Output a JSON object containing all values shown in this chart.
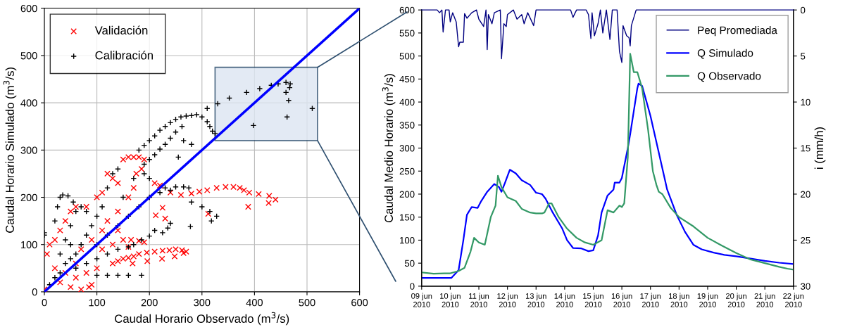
{
  "chart_data": [
    {
      "type": "scatter",
      "xlabel": "Caudal Horario Observado (m$^{3}$/s)",
      "ylabel": "Caudal Horario Simulado (m$^{3}$/s)",
      "xlim": [
        0,
        600
      ],
      "ylim": [
        0,
        600
      ],
      "xticks": [
        0,
        100,
        200,
        300,
        400,
        500,
        600
      ],
      "yticks": [
        0,
        100,
        200,
        300,
        400,
        500,
        600
      ],
      "grid": true,
      "legend": "top left",
      "series": [
        {
          "name": "Validación",
          "color": "#ff0000",
          "marker": "cross",
          "x": [
            0,
            10,
            20,
            30,
            40,
            50,
            60,
            80,
            20,
            30,
            50,
            70,
            85,
            90,
            5,
            150,
            160,
            170,
            180,
            190,
            185,
            175,
            120,
            130,
            140,
            100,
            110,
            210,
            220,
            240,
            260,
            280,
            295,
            310,
            328,
            345,
            360,
            372,
            380,
            390,
            408,
            428,
            440,
            427,
            388,
            312,
            212,
            230,
            225,
            130,
            140,
            150,
            160,
            170,
            180,
            195,
            210,
            225,
            238,
            250,
            262,
            270,
            265,
            248,
            224,
            196,
            168,
            150,
            165,
            180,
            190,
            160,
            40,
            60,
            70,
            90,
            110,
            120,
            140,
            160,
            170,
            60,
            80,
            100,
            110,
            130,
            140
          ],
          "values": [
            5,
            100,
            110,
            130,
            150,
            170,
            180,
            180,
            50,
            20,
            10,
            5,
            10,
            15,
            80,
            280,
            285,
            285,
            285,
            280,
            260,
            250,
            250,
            240,
            230,
            200,
            210,
            230,
            225,
            210,
            205,
            208,
            212,
            215,
            220,
            222,
            222,
            220,
            215,
            210,
            207,
            203,
            195,
            188,
            180,
            165,
            162,
            155,
            178,
            60,
            65,
            70,
            72,
            75,
            80,
            83,
            85,
            87,
            88,
            90,
            88,
            85,
            82,
            75,
            70,
            65,
            60,
            110,
            110,
            108,
            105,
            95,
            40,
            60,
            90,
            110,
            130,
            150,
            170,
            200,
            220,
            30,
            40,
            50,
            90,
            100,
            130
          ]
        },
        {
          "name": "Calibración",
          "color": "#000000",
          "marker": "plus",
          "x": [
            180,
            190,
            200,
            210,
            220,
            230,
            240,
            250,
            260,
            270,
            280,
            290,
            300,
            310,
            315,
            320,
            325,
            330,
            352,
            385,
            410,
            432,
            445,
            460,
            468,
            467,
            460,
            465,
            462,
            398,
            510,
            310,
            190,
            200,
            210,
            220,
            230,
            240,
            250,
            262,
            265,
            280,
            255,
            230,
            250,
            265,
            275,
            280,
            300,
            315,
            318,
            328,
            240,
            235,
            210,
            225,
            200,
            185,
            278,
            100,
            120,
            140,
            160,
            185,
            20,
            25,
            30,
            35,
            45,
            55,
            60,
            50,
            40,
            0,
            0,
            10,
            20,
            30,
            40,
            50,
            60,
            70,
            80,
            90,
            100,
            110,
            120,
            130,
            140,
            100,
            120,
            140,
            160,
            180,
            200,
            220,
            240,
            60,
            80,
            100,
            120,
            140,
            160,
            170,
            150,
            170,
            190,
            200,
            70,
            80,
            50,
            30
          ],
          "values": [
            300,
            310,
            320,
            330,
            342,
            350,
            358,
            365,
            370,
            372,
            373,
            375,
            370,
            360,
            350,
            340,
            335,
            398,
            410,
            422,
            430,
            437,
            440,
            443,
            440,
            432,
            422,
            405,
            370,
            352,
            388,
            388,
            270,
            280,
            290,
            302,
            312,
            325,
            338,
            350,
            320,
            312,
            285,
            220,
            222,
            222,
            220,
            190,
            180,
            170,
            150,
            160,
            145,
            135,
            130,
            125,
            118,
            110,
            138,
            35,
            35,
            35,
            35,
            35,
            150,
            180,
            200,
            205,
            203,
            190,
            170,
            140,
            110,
            120,
            125,
            15,
            30,
            40,
            60,
            70,
            80,
            100,
            120,
            140,
            160,
            180,
            220,
            250,
            260,
            100,
            120,
            140,
            160,
            180,
            200,
            210,
            215,
            50,
            60,
            70,
            80,
            90,
            95,
            100,
            200,
            240,
            250,
            240,
            180,
            170,
            100,
            80
          ]
        },
        {
          "type": "line",
          "color": "#0000ff",
          "x": [
            0,
            600
          ],
          "values": [
            0,
            600
          ]
        }
      ]
    },
    {
      "type": "line",
      "ylabel": "Caudal Medio Horario (m$^{3}$/s)",
      "y2label": "i (mm/h)",
      "xlim": [
        "2010-06-09",
        "2010-06-22"
      ],
      "xticks": [
        {
          "value": "2010-06-09",
          "label": "09 jun\n2010"
        },
        {
          "value": "2010-06-10",
          "label": "10 jun\n2010"
        },
        {
          "value": "2010-06-11",
          "label": "11 jun\n2010"
        },
        {
          "value": "2010-06-12",
          "label": "12 jun\n2010"
        },
        {
          "value": "2010-06-13",
          "label": "13 jun\n2010"
        },
        {
          "value": "2010-06-14",
          "label": "14 jun\n2010"
        },
        {
          "value": "2010-06-15",
          "label": "15 jun\n2010"
        },
        {
          "value": "2010-06-16",
          "label": "16 jun\n2010"
        },
        {
          "value": "2010-06-17",
          "label": "17 jun\n2010"
        },
        {
          "value": "2010-06-18",
          "label": "18 jun\n2010"
        },
        {
          "value": "2010-06-19",
          "label": "19 jun\n2010"
        },
        {
          "value": "2010-06-20",
          "label": "20 jun\n2010"
        },
        {
          "value": "2010-06-21",
          "label": "21 jun\n2010"
        },
        {
          "value": "2010-06-22",
          "label": "22 jun\n2010"
        }
      ],
      "ylim": [
        0,
        600
      ],
      "yticks": [
        0,
        50,
        100,
        150,
        200,
        250,
        300,
        350,
        400,
        450,
        500,
        550,
        600
      ],
      "y2lim": [
        30,
        0
      ],
      "y2ticks": [
        0,
        5,
        10,
        15,
        20,
        25,
        30
      ],
      "grid": false,
      "legend": "top right",
      "series": [
        {
          "name": "Peq Promediada",
          "color": "#000080",
          "axis": "y2",
          "x": [
            "2010-06-09T00:00",
            "2010-06-09T13:00",
            "2010-06-09T15:00",
            "2010-06-09T17:00",
            "2010-06-09T18:00",
            "2010-06-09T20:00",
            "2010-06-09T23:00",
            "2010-06-10T00:00",
            "2010-06-10T02:00",
            "2010-06-10T05:00",
            "2010-06-10T07:00",
            "2010-06-10T08:00",
            "2010-06-10T11:00",
            "2010-06-10T12:00",
            "2010-06-10T14:00",
            "2010-06-10T18:00",
            "2010-06-10T22:00",
            "2010-06-11T00:00",
            "2010-06-11T04:00",
            "2010-06-11T06:00",
            "2010-06-11T07:00",
            "2010-06-11T08:00",
            "2010-06-11T11:00",
            "2010-06-11T13:00",
            "2010-06-11T18:00",
            "2010-06-11T19:00",
            "2010-06-11T21:00",
            "2010-06-11T23:00",
            "2010-06-12T00:00",
            "2010-06-12T05:00",
            "2010-06-12T08:00",
            "2010-06-12T12:00",
            "2010-06-12T14:00",
            "2010-06-12T17:00",
            "2010-06-12T22:00",
            "2010-06-13T00:00",
            "2010-06-14T05:00",
            "2010-06-14T07:00",
            "2010-06-14T10:00",
            "2010-06-14T18:00",
            "2010-06-14T20:00",
            "2010-06-14T22:00",
            "2010-06-14T23:00",
            "2010-06-15T01:00",
            "2010-06-15T04:00",
            "2010-06-15T06:00",
            "2010-06-15T08:00",
            "2010-06-15T11:00",
            "2010-06-15T14:00",
            "2010-06-15T16:00",
            "2010-06-15T20:00",
            "2010-06-15T22:00",
            "2010-06-16T00:00",
            "2010-06-16T01:00",
            "2010-06-16T04:00",
            "2010-06-16T06:00",
            "2010-06-16T07:00",
            "2010-06-16T08:00",
            "2010-06-16T12:00",
            "2010-06-22T00:00"
          ],
          "values": [
            0,
            0,
            0.3,
            0,
            2.4,
            0,
            0,
            1.3,
            0.3,
            1.3,
            4.0,
            3.5,
            3.5,
            0.4,
            0.9,
            0.3,
            0,
            1.0,
            1.8,
            0,
            4.3,
            0.5,
            1.5,
            0.3,
            0,
            5.3,
            1.5,
            1.8,
            0.5,
            0,
            1.0,
            0.5,
            1.5,
            0.3,
            1.7,
            0,
            0,
            0.8,
            0,
            0,
            0.5,
            3.1,
            0.3,
            2.8,
            1.5,
            0,
            2.5,
            0,
            3.2,
            0,
            0,
            4.5,
            5.7,
            1.7,
            2.8,
            3.0,
            3.9,
            1.7,
            0,
            0
          ]
        },
        {
          "name": "Q Simulado",
          "color": "#0000ff",
          "x": [
            "2010-06-09T00:00",
            "2010-06-10T01:00",
            "2010-06-10T07:00",
            "2010-06-10T11:00",
            "2010-06-10T14:00",
            "2010-06-10T18:00",
            "2010-06-10T23:00",
            "2010-06-11T02:00",
            "2010-06-11T07:00",
            "2010-06-11T13:00",
            "2010-06-11T17:00",
            "2010-06-11T19:00",
            "2010-06-11T22:00",
            "2010-06-12T02:00",
            "2010-06-12T07:00",
            "2010-06-12T12:00",
            "2010-06-12T19:00",
            "2010-06-13T00:00",
            "2010-06-13T05:00",
            "2010-06-13T08:00",
            "2010-06-13T14:00",
            "2010-06-13T22:00",
            "2010-06-14T02:00",
            "2010-06-14T07:00",
            "2010-06-14T14:00",
            "2010-06-14T20:00",
            "2010-06-15T00:00",
            "2010-06-15T04:00",
            "2010-06-15T07:00",
            "2010-06-15T12:00",
            "2010-06-15T17:00",
            "2010-06-15T18:00",
            "2010-06-15T22:00",
            "2010-06-16T00:00",
            "2010-06-16T05:00",
            "2010-06-16T07:00",
            "2010-06-16T10:00",
            "2010-06-16T13:00",
            "2010-06-16T14:00",
            "2010-06-16T17:00",
            "2010-06-17T00:00",
            "2010-06-17T07:00",
            "2010-06-17T14:00",
            "2010-06-17T22:00",
            "2010-06-18T05:00",
            "2010-06-18T12:00",
            "2010-06-18T19:00",
            "2010-06-19T05:00",
            "2010-06-19T14:00",
            "2010-06-20T00:00",
            "2010-06-20T12:00",
            "2010-06-21T00:00",
            "2010-06-21T12:00",
            "2010-06-22T00:00"
          ],
          "values": [
            18,
            18,
            35,
            100,
            155,
            172,
            170,
            185,
            205,
            222,
            215,
            205,
            225,
            253,
            245,
            230,
            220,
            203,
            200,
            190,
            160,
            125,
            100,
            83,
            82,
            76,
            78,
            110,
            160,
            197,
            210,
            225,
            225,
            235,
            300,
            330,
            380,
            430,
            440,
            435,
            370,
            290,
            210,
            155,
            118,
            90,
            80,
            73,
            68,
            65,
            60,
            55,
            51,
            48
          ]
        },
        {
          "name": "Q Observado",
          "color": "#339966",
          "x": [
            "2010-06-09T00:00",
            "2010-06-09T10:00",
            "2010-06-09T19:00",
            "2010-06-10T00:00",
            "2010-06-10T07:00",
            "2010-06-10T12:00",
            "2010-06-10T17:00",
            "2010-06-10T20:00",
            "2010-06-11T00:00",
            "2010-06-11T05:00",
            "2010-06-11T10:00",
            "2010-06-11T14:00",
            "2010-06-11T16:00",
            "2010-06-11T19:00",
            "2010-06-12T00:00",
            "2010-06-12T07:00",
            "2010-06-12T12:00",
            "2010-06-12T19:00",
            "2010-06-13T00:00",
            "2010-06-13T05:00",
            "2010-06-13T07:00",
            "2010-06-13T11:00",
            "2010-06-13T13:00",
            "2010-06-13T19:00",
            "2010-06-14T02:00",
            "2010-06-14T10:00",
            "2010-06-14T17:00",
            "2010-06-15T00:00",
            "2010-06-15T07:00",
            "2010-06-15T12:00",
            "2010-06-15T17:00",
            "2010-06-15T22:00",
            "2010-06-16T00:00",
            "2010-06-16T02:00",
            "2010-06-16T05:00",
            "2010-06-16T06:00",
            "2010-06-16T07:00",
            "2010-06-16T10:00",
            "2010-06-16T13:00",
            "2010-06-16T17:00",
            "2010-06-16T22:00",
            "2010-06-17T02:00",
            "2010-06-17T05:00",
            "2010-06-17T07:00",
            "2010-06-17T10:00",
            "2010-06-17T17:00",
            "2010-06-18T00:00",
            "2010-06-18T12:00",
            "2010-06-19T00:00",
            "2010-06-19T12:00",
            "2010-06-20T00:00",
            "2010-06-20T12:00",
            "2010-06-21T00:00",
            "2010-06-21T12:00",
            "2010-06-21T19:00",
            "2010-06-22T00:00"
          ],
          "values": [
            30,
            27,
            28,
            28,
            33,
            40,
            75,
            105,
            95,
            90,
            150,
            175,
            240,
            215,
            193,
            185,
            168,
            160,
            158,
            158,
            160,
            180,
            180,
            150,
            125,
            105,
            95,
            90,
            100,
            165,
            160,
            175,
            172,
            180,
            280,
            390,
            505,
            465,
            465,
            430,
            340,
            250,
            220,
            205,
            200,
            170,
            150,
            130,
            105,
            88,
            72,
            58,
            50,
            42,
            38,
            36
          ]
        }
      ]
    }
  ]
}
